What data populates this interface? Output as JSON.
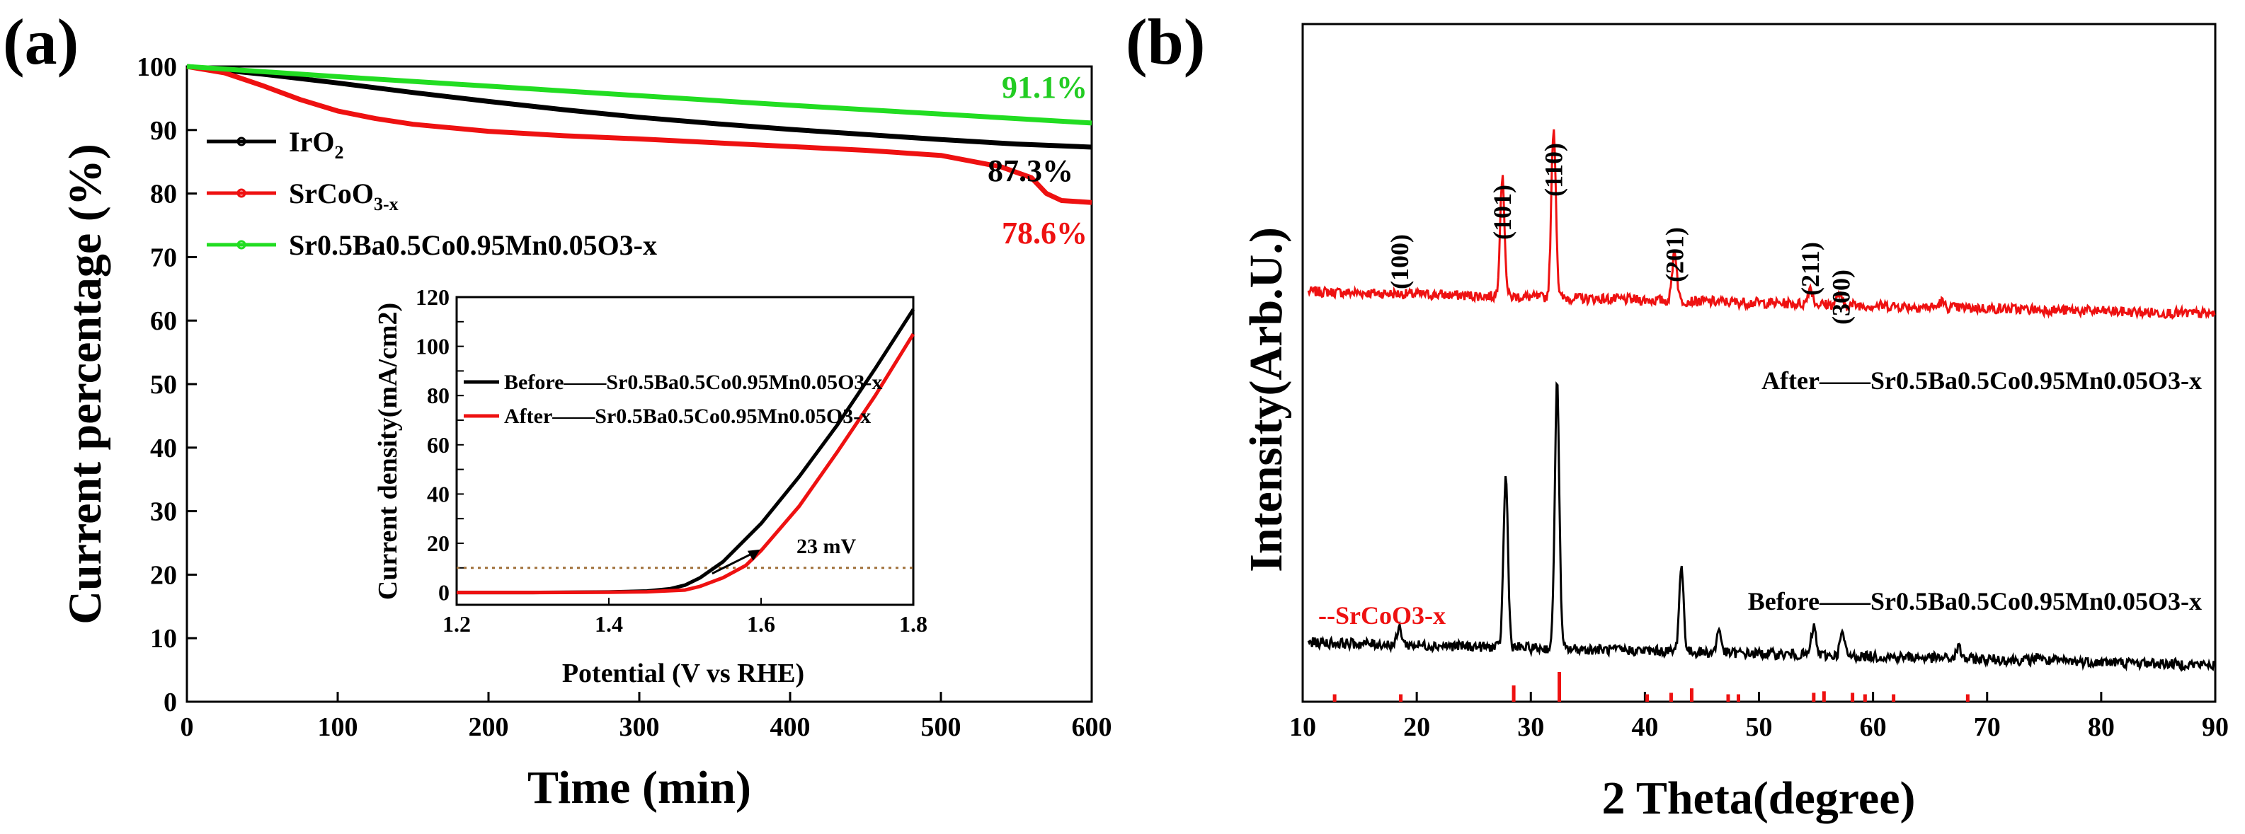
{
  "panels": {
    "a": {
      "label": "(a)",
      "colors": {
        "IrO2": "#000000",
        "SrCoO3-x": "#ee1111",
        "SBCM": "#22dd22"
      },
      "end_labels": [
        {
          "text": "91.1%",
          "series": "SBCM",
          "color": "#22cc22"
        },
        {
          "text": "87.3%",
          "series": "IrO2",
          "color": "#000000"
        },
        {
          "text": "78.6%",
          "series": "SrCoO3-x",
          "color": "#ee1111"
        }
      ]
    },
    "b": {
      "label": "(b)",
      "labels": {
        "after": "After——Sr0.5Ba0.5Co0.95Mn0.05O3-x",
        "before": "Before——Sr0.5Ba0.5Co0.95Mn0.05O3-x",
        "ref": "--SrCoO3-x"
      }
    }
  },
  "chart_data": [
    {
      "id": "a-main",
      "type": "line",
      "xlabel": "Time (min)",
      "ylabel": "Current percentage (%)",
      "xlim": [
        0,
        600
      ],
      "ylim": [
        0,
        100
      ],
      "xticks": [
        0,
        100,
        200,
        300,
        400,
        500,
        600
      ],
      "yticks": [
        0,
        10,
        20,
        30,
        40,
        50,
        60,
        70,
        80,
        90,
        100
      ],
      "legend_position": "upper-left",
      "series": [
        {
          "key": "IrO2",
          "name": "IrO2",
          "base": "IrO",
          "sub": "2",
          "color": "#000000",
          "x": [
            0,
            50,
            100,
            150,
            200,
            250,
            300,
            350,
            400,
            450,
            500,
            550,
            600
          ],
          "y": [
            100,
            98.8,
            97.4,
            95.9,
            94.5,
            93.2,
            92.0,
            91.0,
            90.1,
            89.3,
            88.5,
            87.8,
            87.3
          ]
        },
        {
          "key": "SrCoO3-x",
          "name": "SrCoO3-x",
          "base": "SrCoO",
          "sub": "3-x",
          "color": "#ee1111",
          "x": [
            0,
            25,
            50,
            75,
            100,
            125,
            150,
            200,
            250,
            300,
            350,
            400,
            450,
            500,
            540,
            560,
            570,
            580,
            600
          ],
          "y": [
            100,
            99.0,
            97.0,
            94.8,
            93.0,
            91.8,
            90.9,
            89.8,
            89.1,
            88.6,
            88.0,
            87.4,
            86.8,
            86.0,
            84.2,
            82.5,
            80.0,
            78.9,
            78.6
          ]
        },
        {
          "key": "SBCM",
          "name": "Sr0.5Ba0.5Co0.95Mn0.05O3-x",
          "color": "#22dd22",
          "x": [
            0,
            100,
            200,
            300,
            400,
            500,
            600
          ],
          "y": [
            100,
            98.4,
            96.9,
            95.4,
            93.9,
            92.5,
            91.1
          ]
        }
      ]
    },
    {
      "id": "a-inset",
      "type": "line",
      "xlabel": "Potential (V vs RHE)",
      "ylabel": "Current density(mA/cm2)",
      "xlim": [
        1.2,
        1.8
      ],
      "ylim": [
        -5,
        120
      ],
      "xticks": [
        1.2,
        1.4,
        1.6,
        1.8
      ],
      "yticks": [
        0,
        10,
        20,
        30,
        40,
        50,
        60,
        70,
        80,
        90,
        100,
        110,
        120
      ],
      "reference_line": {
        "y": 10,
        "color": "#a0703a"
      },
      "annotation": {
        "text": "23 mV",
        "x": 1.545,
        "y": 10
      },
      "series": [
        {
          "name": "Before——Sr0.5Ba0.5Co0.95Mn0.05O3-x",
          "color": "#000000",
          "x": [
            1.2,
            1.3,
            1.4,
            1.45,
            1.48,
            1.5,
            1.52,
            1.55,
            1.6,
            1.65,
            1.7,
            1.75,
            1.8
          ],
          "y": [
            0,
            0,
            0.2,
            0.6,
            1.5,
            3.0,
            6.0,
            12.5,
            28,
            47,
            68,
            91,
            115
          ]
        },
        {
          "name": "After——Sr0.5Ba0.5Co0.95Mn0.05O3-x",
          "color": "#ee1111",
          "x": [
            1.2,
            1.3,
            1.4,
            1.45,
            1.5,
            1.52,
            1.55,
            1.58,
            1.6,
            1.65,
            1.7,
            1.75,
            1.8
          ],
          "y": [
            0,
            0,
            0.1,
            0.3,
            1.0,
            2.5,
            6.0,
            11.0,
            17.0,
            35,
            57,
            80,
            105
          ]
        }
      ]
    },
    {
      "id": "b-xrd",
      "type": "line",
      "xlabel": "2 Theta(degree)",
      "ylabel": "Intensity(Arb.U.)",
      "xlim": [
        10,
        90
      ],
      "yticks": [],
      "xticks": [
        10,
        20,
        30,
        40,
        50,
        60,
        70,
        80,
        90
      ],
      "peak_labels": [
        {
          "text": "(100)",
          "x": 18.5
        },
        {
          "text": "(101)",
          "x": 27.5
        },
        {
          "text": "(110)",
          "x": 32.0
        },
        {
          "text": "(201)",
          "x": 42.6
        },
        {
          "text": "(211)",
          "x": 54.5
        },
        {
          "text": "(300)",
          "x": 57.2
        }
      ],
      "series": [
        {
          "name": "After",
          "color": "#ee1111",
          "baseline_start": 0.66,
          "baseline_end": 0.62,
          "peaks": [
            [
              27.5,
              0.21
            ],
            [
              32.0,
              0.3
            ],
            [
              42.6,
              0.09
            ],
            [
              54.5,
              0.03
            ],
            [
              57.0,
              0.02
            ],
            [
              66.0,
              0.01
            ]
          ]
        },
        {
          "name": "Before",
          "color": "#000000",
          "baseline_start": 0.04,
          "baseline_end": 0.0,
          "peaks": [
            [
              18.5,
              0.03
            ],
            [
              27.8,
              0.3
            ],
            [
              32.3,
              0.47
            ],
            [
              43.2,
              0.15
            ],
            [
              46.5,
              0.04
            ],
            [
              54.8,
              0.05
            ],
            [
              57.3,
              0.04
            ],
            [
              67.5,
              0.02
            ],
            [
              74.5,
              0.01
            ]
          ]
        }
      ],
      "reference_ticks": {
        "name": "SrCoO3-x",
        "color": "#ee1111",
        "positions": [
          12.8,
          18.6,
          28.5,
          32.5,
          40.2,
          42.3,
          44.1,
          47.3,
          48.2,
          54.8,
          55.7,
          58.2,
          59.3,
          61.8,
          68.3
        ],
        "heights": [
          0.25,
          0.25,
          0.55,
          1.0,
          0.25,
          0.3,
          0.45,
          0.25,
          0.25,
          0.3,
          0.35,
          0.3,
          0.25,
          0.25,
          0.25
        ]
      }
    }
  ]
}
